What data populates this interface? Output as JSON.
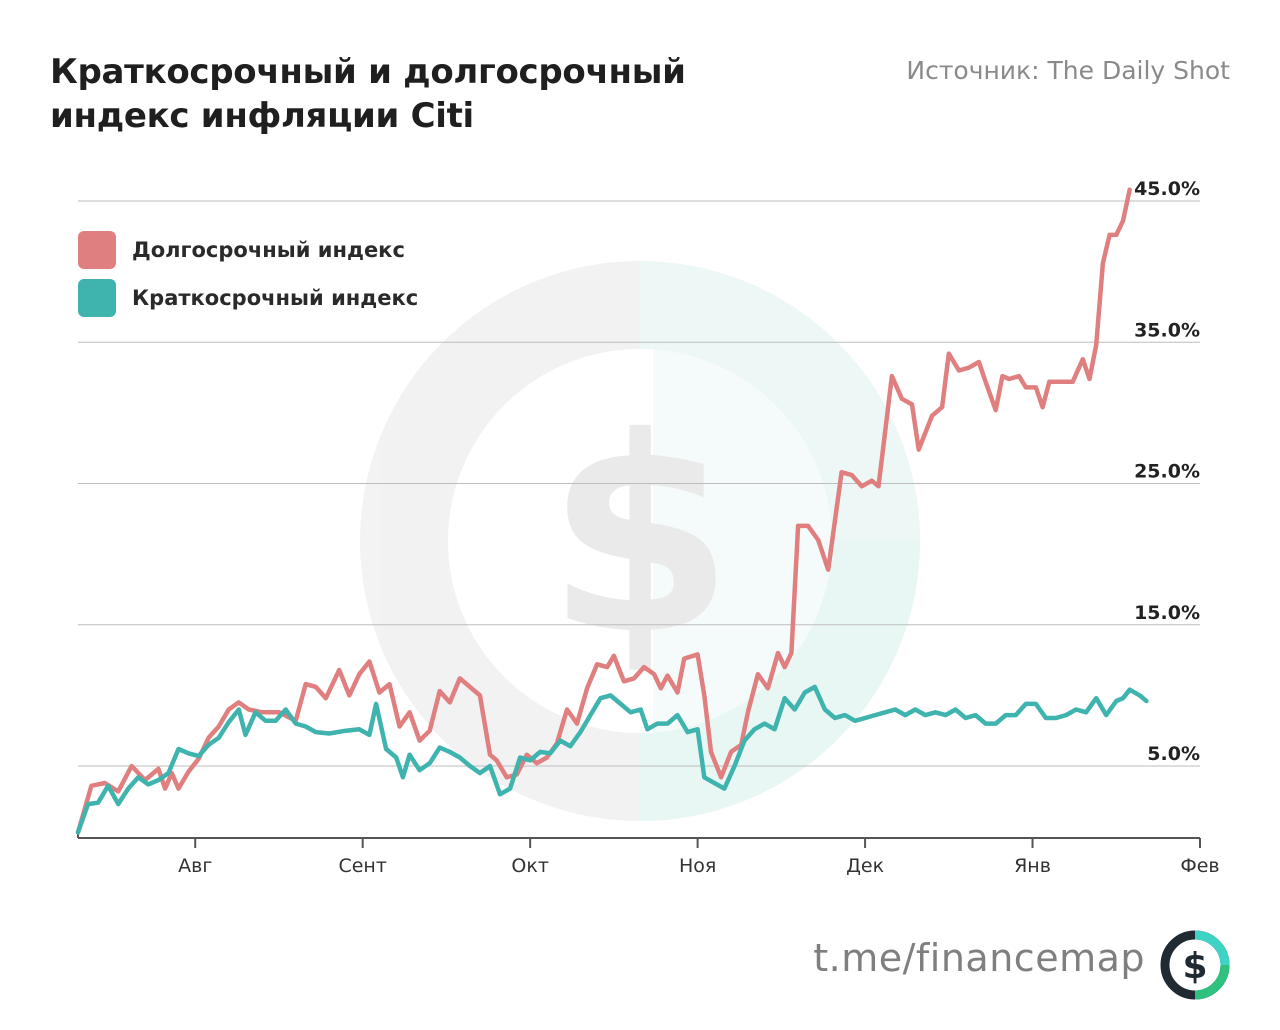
{
  "header": {
    "title_line1": "Краткосрочный и долгосрочный",
    "title_line2": "индекс инфляции Citi",
    "source": "Источник: The Daily Shot"
  },
  "legend": [
    {
      "label": "Долгосрочный индекс",
      "color": "#e07f7f"
    },
    {
      "label": "Краткосрочный индекс",
      "color": "#3fb3ad"
    }
  ],
  "brand": {
    "text": "t.me/financemap",
    "icon": "dollar-icon"
  },
  "colors": {
    "long": "#e07f7f",
    "short": "#3fb3ad",
    "grid": "#bdbdbd",
    "axis": "#555555",
    "watermark": "dollar-watermark"
  },
  "chart_data": {
    "type": "line",
    "x_tick_labels": [
      "Авг",
      "Сент",
      "Окт",
      "Ноя",
      "Дек",
      "Янв",
      "Фев"
    ],
    "y_tick_labels": [
      "45.0%",
      "35.0%",
      "25.0%",
      "15.0%",
      "5.0%"
    ],
    "y_ticks": [
      45,
      35,
      25,
      15,
      5
    ],
    "ylim": [
      0,
      47
    ],
    "xlim": [
      0,
      6.7
    ],
    "grid": true,
    "legend_position": "top-left",
    "series": [
      {
        "name": "Долгосрочный индекс",
        "color": "#e07f7f",
        "points": [
          [
            0.0,
            0.3
          ],
          [
            0.08,
            3.6
          ],
          [
            0.16,
            3.8
          ],
          [
            0.24,
            3.2
          ],
          [
            0.32,
            5.0
          ],
          [
            0.4,
            4.0
          ],
          [
            0.48,
            4.8
          ],
          [
            0.52,
            3.4
          ],
          [
            0.56,
            4.5
          ],
          [
            0.6,
            3.4
          ],
          [
            0.66,
            4.6
          ],
          [
            0.72,
            5.5
          ],
          [
            0.78,
            7.0
          ],
          [
            0.84,
            7.8
          ],
          [
            0.9,
            9.0
          ],
          [
            0.96,
            9.5
          ],
          [
            1.02,
            9.0
          ],
          [
            1.1,
            8.8
          ],
          [
            1.2,
            8.8
          ],
          [
            1.3,
            8.2
          ],
          [
            1.36,
            10.8
          ],
          [
            1.42,
            10.6
          ],
          [
            1.48,
            9.8
          ],
          [
            1.56,
            11.8
          ],
          [
            1.62,
            10.0
          ],
          [
            1.68,
            11.5
          ],
          [
            1.74,
            12.4
          ],
          [
            1.8,
            10.2
          ],
          [
            1.86,
            10.8
          ],
          [
            1.92,
            7.8
          ],
          [
            1.98,
            8.8
          ],
          [
            2.04,
            6.8
          ],
          [
            2.1,
            7.5
          ],
          [
            2.16,
            10.3
          ],
          [
            2.22,
            9.5
          ],
          [
            2.28,
            11.2
          ],
          [
            2.34,
            10.6
          ],
          [
            2.4,
            10.0
          ],
          [
            2.46,
            5.8
          ],
          [
            2.5,
            5.4
          ],
          [
            2.56,
            4.2
          ],
          [
            2.62,
            4.4
          ],
          [
            2.68,
            5.8
          ],
          [
            2.74,
            5.2
          ],
          [
            2.8,
            5.6
          ],
          [
            2.86,
            6.6
          ],
          [
            2.92,
            9.0
          ],
          [
            2.98,
            8.0
          ],
          [
            3.04,
            10.5
          ],
          [
            3.1,
            12.2
          ],
          [
            3.16,
            12.0
          ],
          [
            3.2,
            12.8
          ],
          [
            3.26,
            11.0
          ],
          [
            3.32,
            11.2
          ],
          [
            3.38,
            12.0
          ],
          [
            3.44,
            11.5
          ],
          [
            3.48,
            10.5
          ],
          [
            3.52,
            11.4
          ],
          [
            3.58,
            10.2
          ],
          [
            3.62,
            12.6
          ],
          [
            3.7,
            12.9
          ],
          [
            3.74,
            10.0
          ],
          [
            3.78,
            6.0
          ],
          [
            3.84,
            4.2
          ],
          [
            3.9,
            6.0
          ],
          [
            3.96,
            6.5
          ],
          [
            4.0,
            8.8
          ],
          [
            4.06,
            11.5
          ],
          [
            4.12,
            10.5
          ],
          [
            4.18,
            13.0
          ],
          [
            4.22,
            12.0
          ],
          [
            4.26,
            13.0
          ],
          [
            4.3,
            22.0
          ],
          [
            4.36,
            22.0
          ],
          [
            4.42,
            21.0
          ],
          [
            4.48,
            18.9
          ],
          [
            4.56,
            25.8
          ],
          [
            4.62,
            25.6
          ],
          [
            4.68,
            24.8
          ],
          [
            4.74,
            25.2
          ],
          [
            4.78,
            24.8
          ],
          [
            4.86,
            32.6
          ],
          [
            4.92,
            31.0
          ],
          [
            4.98,
            30.6
          ],
          [
            5.02,
            27.4
          ],
          [
            5.1,
            29.8
          ],
          [
            5.16,
            30.4
          ],
          [
            5.2,
            34.2
          ],
          [
            5.26,
            33.0
          ],
          [
            5.32,
            33.2
          ],
          [
            5.38,
            33.6
          ],
          [
            5.42,
            32.2
          ],
          [
            5.48,
            30.2
          ],
          [
            5.52,
            32.6
          ],
          [
            5.56,
            32.4
          ],
          [
            5.62,
            32.6
          ],
          [
            5.66,
            31.8
          ],
          [
            5.72,
            31.8
          ],
          [
            5.76,
            30.4
          ],
          [
            5.8,
            32.2
          ],
          [
            5.88,
            32.2
          ],
          [
            5.94,
            32.2
          ],
          [
            6.0,
            33.8
          ],
          [
            6.04,
            32.4
          ],
          [
            6.08,
            34.8
          ],
          [
            6.12,
            40.6
          ],
          [
            6.16,
            42.6
          ],
          [
            6.2,
            42.6
          ],
          [
            6.24,
            43.6
          ],
          [
            6.28,
            45.8
          ]
        ]
      },
      {
        "name": "Краткосрочный индекс",
        "color": "#3fb3ad",
        "points": [
          [
            0.0,
            0.3
          ],
          [
            0.06,
            2.3
          ],
          [
            0.12,
            2.4
          ],
          [
            0.18,
            3.6
          ],
          [
            0.24,
            2.3
          ],
          [
            0.3,
            3.4
          ],
          [
            0.36,
            4.2
          ],
          [
            0.42,
            3.7
          ],
          [
            0.48,
            4.0
          ],
          [
            0.54,
            4.5
          ],
          [
            0.6,
            6.2
          ],
          [
            0.66,
            5.9
          ],
          [
            0.72,
            5.7
          ],
          [
            0.78,
            6.5
          ],
          [
            0.84,
            7.0
          ],
          [
            0.9,
            8.1
          ],
          [
            0.96,
            9.0
          ],
          [
            1.0,
            7.2
          ],
          [
            1.06,
            8.8
          ],
          [
            1.12,
            8.2
          ],
          [
            1.18,
            8.2
          ],
          [
            1.24,
            9.0
          ],
          [
            1.3,
            8.0
          ],
          [
            1.36,
            7.8
          ],
          [
            1.42,
            7.4
          ],
          [
            1.5,
            7.3
          ],
          [
            1.6,
            7.5
          ],
          [
            1.68,
            7.6
          ],
          [
            1.74,
            7.2
          ],
          [
            1.78,
            9.4
          ],
          [
            1.84,
            6.2
          ],
          [
            1.9,
            5.6
          ],
          [
            1.94,
            4.2
          ],
          [
            1.98,
            5.8
          ],
          [
            2.04,
            4.7
          ],
          [
            2.1,
            5.2
          ],
          [
            2.16,
            6.3
          ],
          [
            2.22,
            6.0
          ],
          [
            2.28,
            5.6
          ],
          [
            2.34,
            5.0
          ],
          [
            2.4,
            4.5
          ],
          [
            2.46,
            5.0
          ],
          [
            2.52,
            3.0
          ],
          [
            2.58,
            3.4
          ],
          [
            2.64,
            5.6
          ],
          [
            2.7,
            5.4
          ],
          [
            2.76,
            6.0
          ],
          [
            2.82,
            5.9
          ],
          [
            2.88,
            6.8
          ],
          [
            2.94,
            6.4
          ],
          [
            3.0,
            7.4
          ],
          [
            3.06,
            8.6
          ],
          [
            3.12,
            9.8
          ],
          [
            3.18,
            10.0
          ],
          [
            3.24,
            9.4
          ],
          [
            3.3,
            8.8
          ],
          [
            3.36,
            9.0
          ],
          [
            3.4,
            7.6
          ],
          [
            3.46,
            8.0
          ],
          [
            3.52,
            8.0
          ],
          [
            3.58,
            8.6
          ],
          [
            3.64,
            7.4
          ],
          [
            3.7,
            7.6
          ],
          [
            3.74,
            4.2
          ],
          [
            3.8,
            3.8
          ],
          [
            3.86,
            3.4
          ],
          [
            3.92,
            5.0
          ],
          [
            3.98,
            6.8
          ],
          [
            4.04,
            7.6
          ],
          [
            4.1,
            8.0
          ],
          [
            4.16,
            7.6
          ],
          [
            4.22,
            9.8
          ],
          [
            4.28,
            9.0
          ],
          [
            4.34,
            10.2
          ],
          [
            4.4,
            10.6
          ],
          [
            4.46,
            9.0
          ],
          [
            4.52,
            8.4
          ],
          [
            4.58,
            8.6
          ],
          [
            4.64,
            8.2
          ],
          [
            4.7,
            8.4
          ],
          [
            4.76,
            8.6
          ],
          [
            4.82,
            8.8
          ],
          [
            4.88,
            9.0
          ],
          [
            4.94,
            8.6
          ],
          [
            5.0,
            9.0
          ],
          [
            5.06,
            8.6
          ],
          [
            5.12,
            8.8
          ],
          [
            5.18,
            8.6
          ],
          [
            5.24,
            9.0
          ],
          [
            5.3,
            8.4
          ],
          [
            5.36,
            8.6
          ],
          [
            5.42,
            8.0
          ],
          [
            5.48,
            8.0
          ],
          [
            5.54,
            8.6
          ],
          [
            5.6,
            8.6
          ],
          [
            5.66,
            9.4
          ],
          [
            5.72,
            9.4
          ],
          [
            5.78,
            8.4
          ],
          [
            5.84,
            8.4
          ],
          [
            5.9,
            8.6
          ],
          [
            5.96,
            9.0
          ],
          [
            6.02,
            8.8
          ],
          [
            6.08,
            9.8
          ],
          [
            6.14,
            8.6
          ],
          [
            6.2,
            9.6
          ],
          [
            6.24,
            9.8
          ],
          [
            6.28,
            10.4
          ],
          [
            6.34,
            10.0
          ],
          [
            6.38,
            9.6
          ]
        ]
      }
    ]
  }
}
